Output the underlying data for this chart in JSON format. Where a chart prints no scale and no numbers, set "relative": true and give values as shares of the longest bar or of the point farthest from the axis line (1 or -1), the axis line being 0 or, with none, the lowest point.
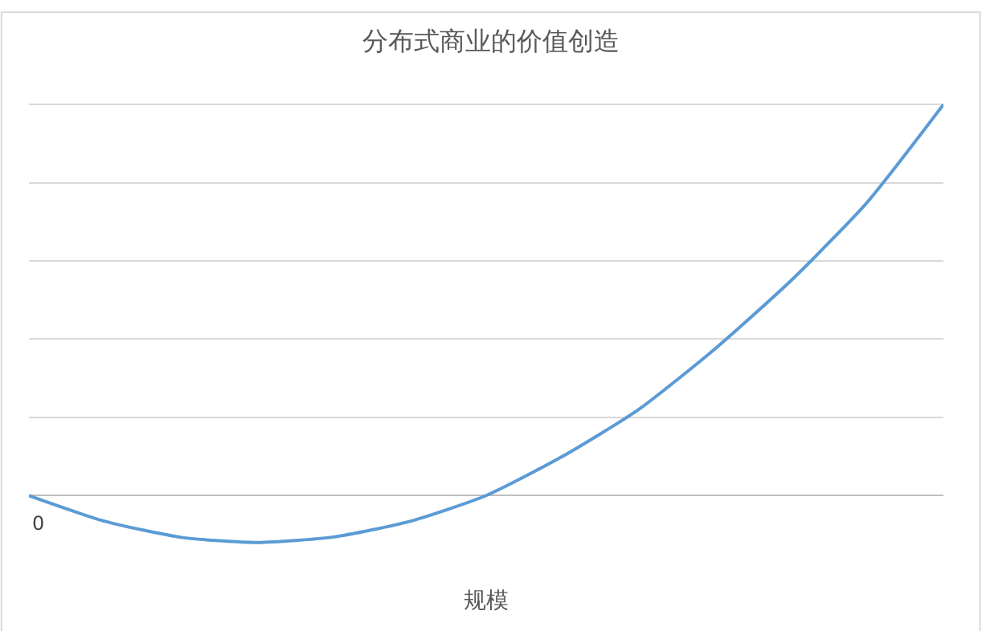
{
  "chart_data": {
    "type": "line",
    "title": "分布式商业的价值创造",
    "xlabel": "规模",
    "relative": true,
    "grid": "y",
    "annotations": [
      "0"
    ],
    "categories": [
      null,
      null,
      null,
      null,
      null,
      null,
      null,
      null,
      null,
      null,
      null,
      null,
      null
    ],
    "series": [
      {
        "color": "#5b9bd5",
        "values": [
          0,
          -0.066,
          -0.107,
          -0.12,
          -0.106,
          -0.066,
          0,
          0.1,
          0.22,
          0.375,
          0.55,
          0.75,
          1
        ]
      }
    ]
  }
}
